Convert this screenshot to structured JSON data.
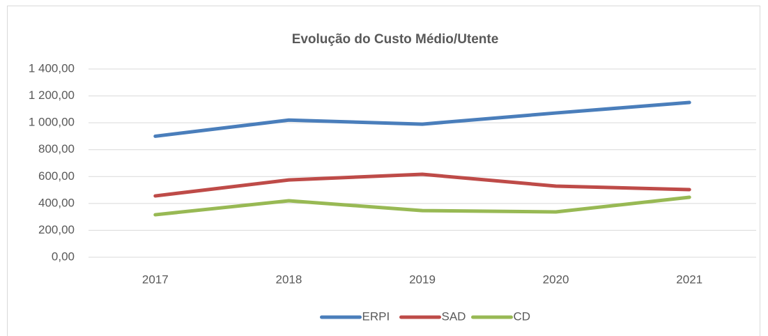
{
  "chart_data": {
    "type": "line",
    "title": "Evolução do Custo Médio/Utente",
    "categories": [
      "2017",
      "2018",
      "2019",
      "2020",
      "2021"
    ],
    "series": [
      {
        "name": "ERPI",
        "color": "#4a7ebb",
        "values": [
          900,
          1020,
          990,
          1073,
          1151
        ]
      },
      {
        "name": "SAD",
        "color": "#be4b48",
        "values": [
          456,
          575,
          617,
          529,
          503
        ]
      },
      {
        "name": "CD",
        "color": "#98b954",
        "values": [
          316,
          420,
          347,
          337,
          446
        ]
      }
    ],
    "ylim": [
      0,
      1400
    ],
    "yticks": [
      {
        "value": 0,
        "label": "0,00"
      },
      {
        "value": 200,
        "label": "200,00"
      },
      {
        "value": 400,
        "label": "400,00"
      },
      {
        "value": 600,
        "label": "600,00"
      },
      {
        "value": 800,
        "label": "800,00"
      },
      {
        "value": 1000,
        "label": "1 000,00"
      },
      {
        "value": 1200,
        "label": "1 200,00"
      },
      {
        "value": 1400,
        "label": "1 400,00"
      }
    ],
    "grid": true,
    "legend": "bottom"
  }
}
